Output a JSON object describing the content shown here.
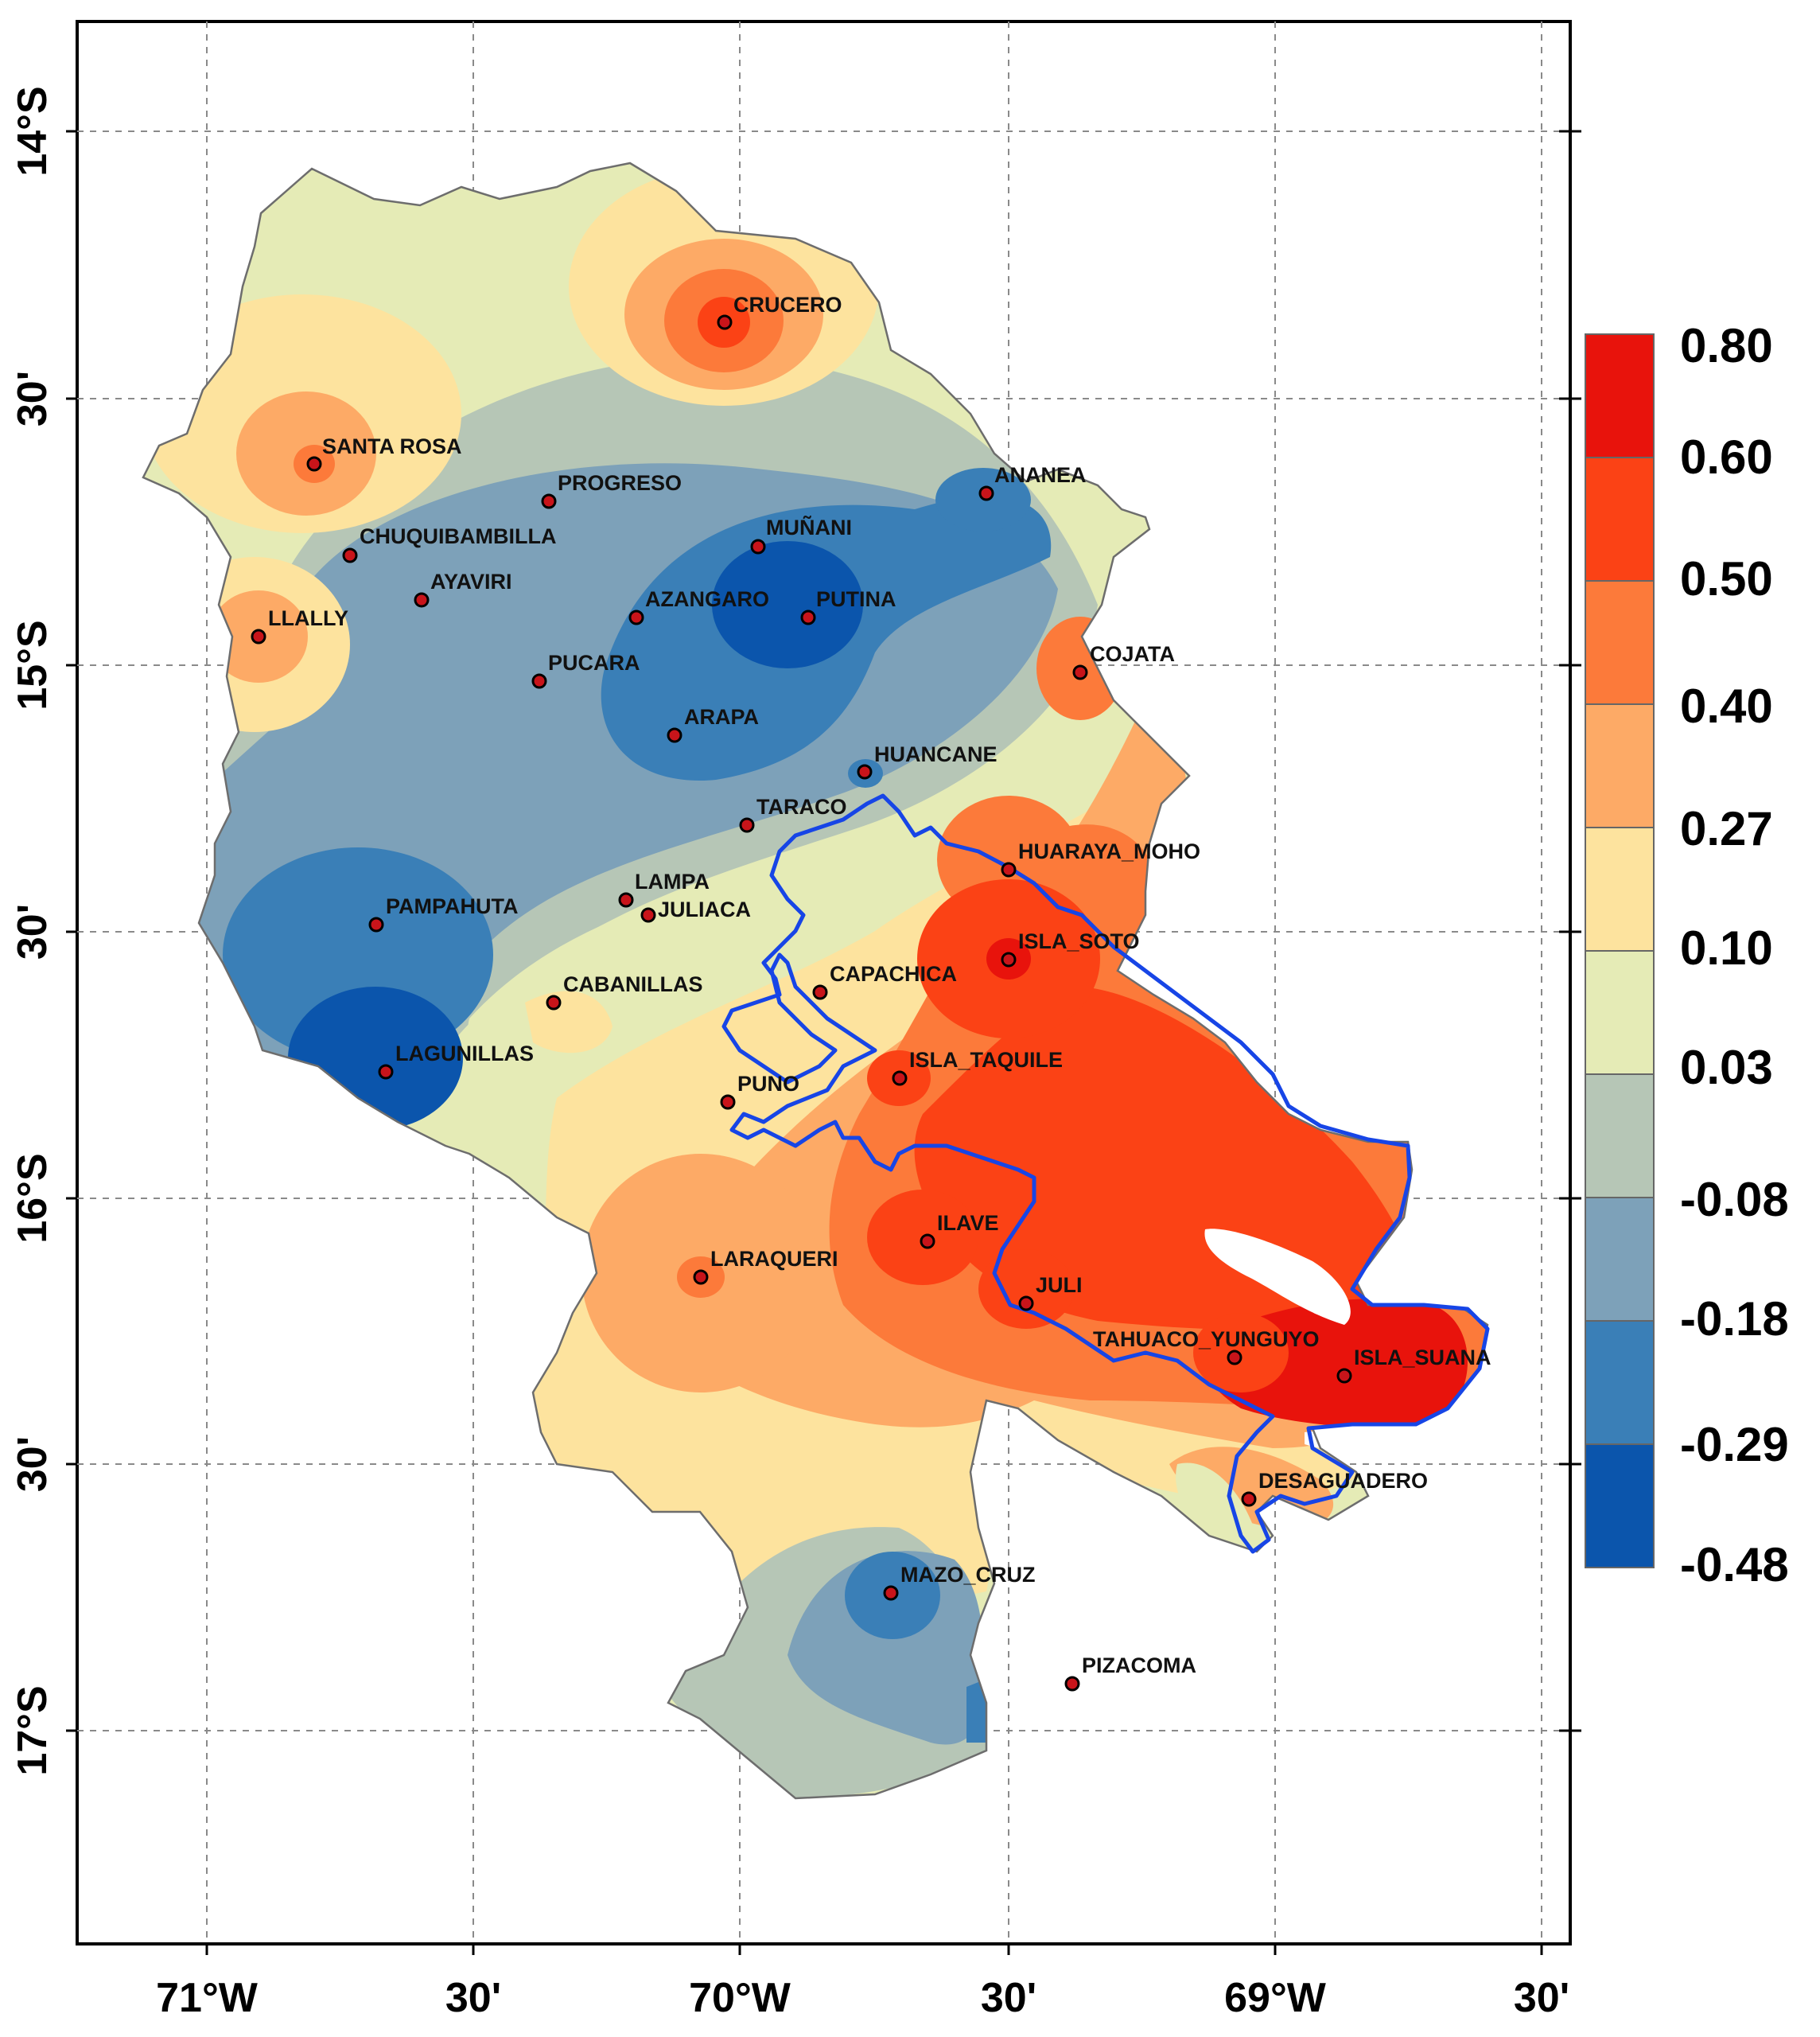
{
  "map": {
    "x_axis_labels": [
      "71°W",
      "30'",
      "70°W",
      "30'",
      "69°W",
      "30'"
    ],
    "y_axis_labels": [
      "14°S",
      "30'",
      "15°S",
      "30'",
      "16°S",
      "30'",
      "17°S"
    ],
    "stations": [
      {
        "name": "CRUCERO",
        "value": 0.6
      },
      {
        "name": "SANTA ROSA",
        "value": 0.45
      },
      {
        "name": "PROGRESO",
        "value": -0.1
      },
      {
        "name": "ANANEA",
        "value": -0.25
      },
      {
        "name": "CHUQUIBAMBILLA",
        "value": 0.0
      },
      {
        "name": "MUÑANI",
        "value": -0.35
      },
      {
        "name": "AYAVIRI",
        "value": -0.05
      },
      {
        "name": "AZANGARO",
        "value": -0.2
      },
      {
        "name": "PUTINA",
        "value": -0.45
      },
      {
        "name": "LLALLY",
        "value": 0.45
      },
      {
        "name": "PUCARA",
        "value": -0.1
      },
      {
        "name": "COJATA",
        "value": 0.5
      },
      {
        "name": "ARAPA",
        "value": -0.3
      },
      {
        "name": "HUANCANE",
        "value": -0.2
      },
      {
        "name": "TARACO",
        "value": 0.05
      },
      {
        "name": "HUARAYA_MOHO",
        "value": 0.5
      },
      {
        "name": "LAMPA",
        "value": 0.05
      },
      {
        "name": "JULIACA",
        "value": 0.05
      },
      {
        "name": "PAMPAHUTA",
        "value": -0.3
      },
      {
        "name": "ISLA_SOTO",
        "value": 0.65
      },
      {
        "name": "CABANILLAS",
        "value": 0.15
      },
      {
        "name": "CAPACHICA",
        "value": 0.3
      },
      {
        "name": "LAGUNILLAS",
        "value": -0.45
      },
      {
        "name": "ISLA_TAQUILE",
        "value": 0.6
      },
      {
        "name": "PUNO",
        "value": 0.3
      },
      {
        "name": "ILAVE",
        "value": 0.6
      },
      {
        "name": "LARAQUERI",
        "value": 0.45
      },
      {
        "name": "JULI",
        "value": 0.6
      },
      {
        "name": "TAHUACO_YUNGUYO",
        "value": 0.7
      },
      {
        "name": "ISLA_SUANA",
        "value": 0.75
      },
      {
        "name": "DESAGUADERO",
        "value": 0.3
      },
      {
        "name": "MAZO_CRUZ",
        "value": -0.3
      },
      {
        "name": "PIZACOMA",
        "value": null
      }
    ]
  },
  "legend": {
    "labels": [
      "0.80",
      "0.60",
      "0.50",
      "0.40",
      "0.27",
      "0.10",
      "0.03",
      "-0.08",
      "-0.18",
      "-0.29",
      "-0.48"
    ],
    "colors": [
      "#e8130c",
      "#fb4215",
      "#fc7a3a",
      "#fdaa66",
      "#fde39e",
      "#e5ebb6",
      "#b6c6b6",
      "#7da1b9",
      "#3a7fb7",
      "#0b55ac"
    ]
  }
}
